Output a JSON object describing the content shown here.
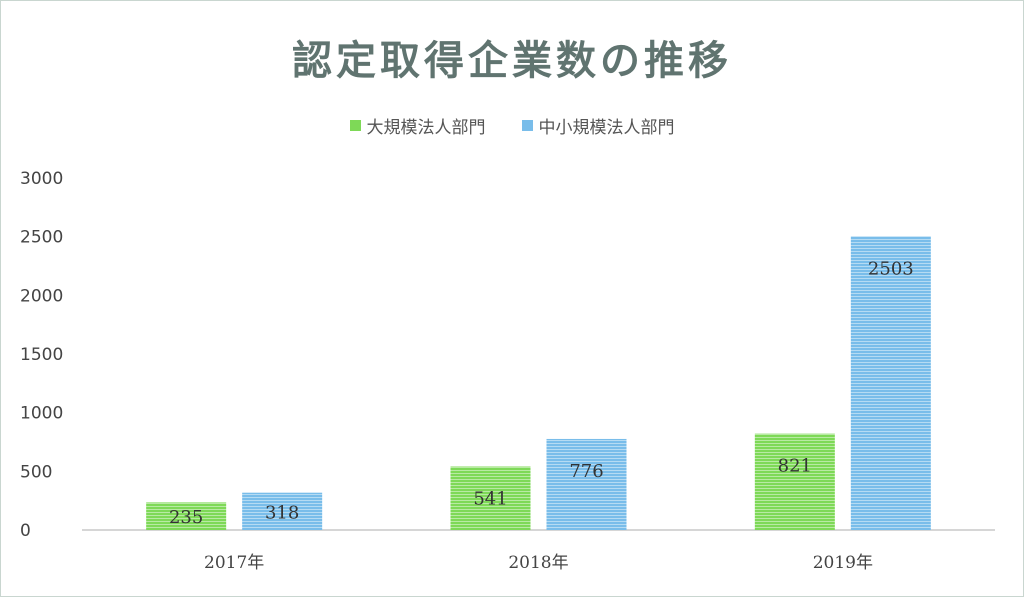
{
  "chart_data": {
    "type": "bar",
    "title": "認定取得企業数の推移",
    "categories": [
      "2017年",
      "2018年",
      "2019年"
    ],
    "series": [
      {
        "name": "大規模法人部門",
        "values": [
          235,
          541,
          821
        ],
        "color": "#7ed957"
      },
      {
        "name": "中小規模法人部門",
        "values": [
          318,
          776,
          2503
        ],
        "color": "#79bdea"
      }
    ],
    "yticks": [
      0,
      500,
      1000,
      1500,
      2000,
      2500,
      3000
    ],
    "ylim": [
      0,
      3000
    ],
    "legend_position": "top",
    "grid": false
  }
}
